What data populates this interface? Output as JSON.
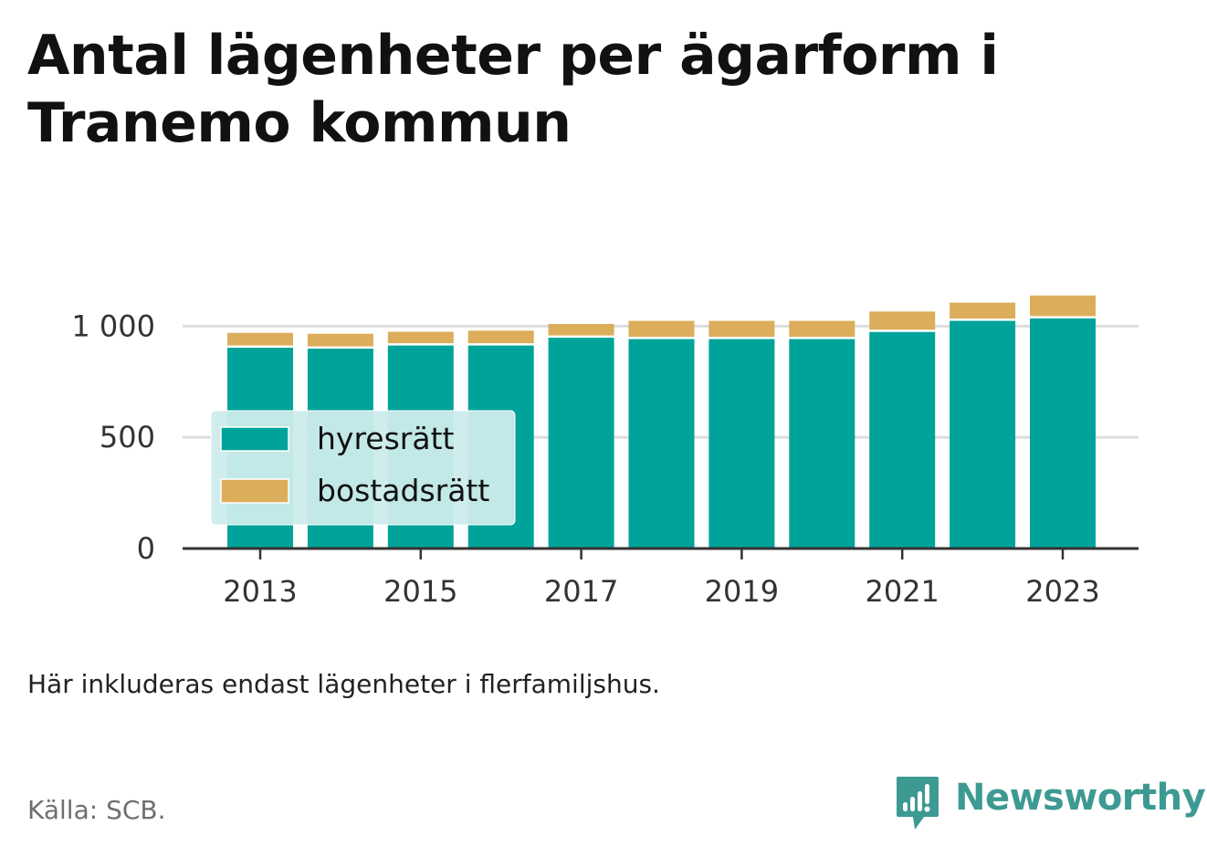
{
  "title": "Antal lägenheter per ägarform i Tranemo kommun",
  "note": "Här inkluderas endast lägenheter i flerfamiljshus.",
  "source": "Källa: SCB.",
  "brand": {
    "name": "Newsworthy",
    "icon": "newsworthy-logo-icon",
    "color": "#3d9a93"
  },
  "colors": {
    "hyresratt": "#00a39a",
    "bostadsratt": "#dcae5b",
    "grid": "#dddddd",
    "axis": "#333333",
    "legend_bg": "#cceceb"
  },
  "chart_data": {
    "type": "bar",
    "stacked": true,
    "categories": [
      "2013",
      "2014",
      "2015",
      "2016",
      "2017",
      "2018",
      "2019",
      "2020",
      "2021",
      "2022",
      "2023"
    ],
    "x_tick_labels": [
      "2013",
      "2015",
      "2017",
      "2019",
      "2021",
      "2023"
    ],
    "series": [
      {
        "name": "hyresrätt",
        "color": "#00a39a",
        "values": [
          903,
          899,
          913,
          913,
          948,
          942,
          942,
          942,
          974,
          1024,
          1035
        ]
      },
      {
        "name": "bostadsrätt",
        "color": "#dcae5b",
        "values": [
          67,
          67,
          62,
          67,
          62,
          82,
          82,
          82,
          92,
          82,
          103
        ]
      }
    ],
    "y_ticks": [
      0,
      500,
      1000
    ],
    "y_tick_labels": [
      "0",
      "500",
      "1 000"
    ],
    "ylim": [
      0,
      1150
    ],
    "xlabel": "",
    "ylabel": "",
    "grid": "horizontal",
    "legend_position": "bottom-left"
  }
}
